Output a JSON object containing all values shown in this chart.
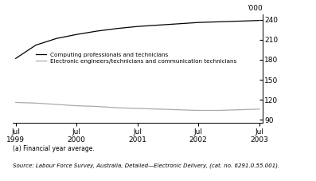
{
  "ylabel": "'000",
  "x_labels": [
    "Jul\n1999",
    "Jul\n2000",
    "Jul\n2001",
    "Jul\n2002",
    "Jul\n2003"
  ],
  "x_positions": [
    0,
    1,
    2,
    3,
    4
  ],
  "computing": [
    182,
    202,
    212,
    218,
    223,
    227,
    230,
    232,
    234,
    236,
    237,
    238,
    239
  ],
  "electronic": [
    116,
    115,
    113,
    111,
    110,
    108,
    107,
    106,
    105,
    104,
    104,
    105,
    106
  ],
  "x_data": [
    0,
    0.33,
    0.67,
    1.0,
    1.33,
    1.67,
    2.0,
    2.33,
    2.67,
    3.0,
    3.33,
    3.67,
    4.0
  ],
  "ylim": [
    85,
    248
  ],
  "yticks": [
    90,
    120,
    150,
    180,
    210,
    240
  ],
  "computing_color": "#000000",
  "electronic_color": "#aaaaaa",
  "legend_computing": "Computing professionals and technicians",
  "legend_electronic": "Electronic engineers/technicians and communication technicians",
  "footnote_a": "(a) Financial year average.",
  "footnote_source": "Source: Labour Force Survey, Australia, Detailed—Electronic Delivery, (cat. no. 6291.0.55.001).",
  "background_color": "#ffffff"
}
